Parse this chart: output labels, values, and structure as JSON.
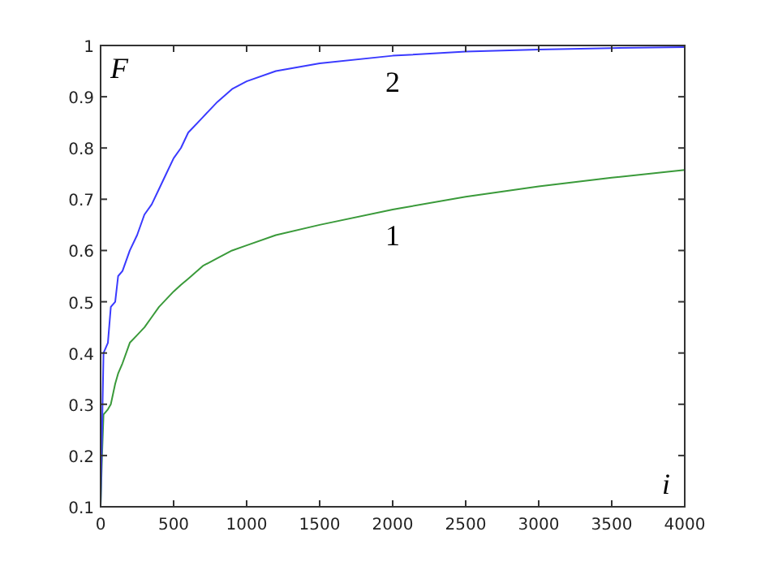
{
  "chart_data": {
    "type": "line",
    "xlabel": "i",
    "ylabel": "F",
    "xlim": [
      0,
      4000
    ],
    "xticks": [
      0,
      500,
      1000,
      1500,
      2000,
      2500,
      3000,
      3500,
      4000
    ],
    "ylim": [
      0.1,
      1
    ],
    "yticks": [
      0.1,
      0.2,
      0.3,
      0.4,
      0.5,
      0.6,
      0.7,
      0.8,
      0.9,
      1
    ],
    "grid": false,
    "marker": "none",
    "line_style": "solid",
    "x": [
      0,
      10,
      20,
      50,
      70,
      100,
      120,
      150,
      200,
      250,
      300,
      350,
      400,
      450,
      500,
      550,
      600,
      700,
      800,
      900,
      1000,
      1200,
      1500,
      2000,
      2500,
      3000,
      3500,
      4000
    ],
    "series": [
      {
        "name": "1",
        "color": "#3a9a3a",
        "values": [
          0.1,
          0.2,
          0.28,
          0.29,
          0.3,
          0.34,
          0.36,
          0.38,
          0.42,
          0.435,
          0.45,
          0.47,
          0.49,
          0.505,
          0.52,
          0.533,
          0.545,
          0.57,
          0.585,
          0.6,
          0.61,
          0.63,
          0.65,
          0.68,
          0.705,
          0.725,
          0.742,
          0.757
        ]
      },
      {
        "name": "2",
        "color": "#3a3aff",
        "values": [
          0.1,
          0.25,
          0.4,
          0.42,
          0.49,
          0.5,
          0.55,
          0.56,
          0.6,
          0.63,
          0.67,
          0.69,
          0.72,
          0.75,
          0.78,
          0.8,
          0.83,
          0.86,
          0.89,
          0.915,
          0.93,
          0.95,
          0.965,
          0.98,
          0.988,
          0.992,
          0.995,
          0.997
        ]
      }
    ]
  }
}
